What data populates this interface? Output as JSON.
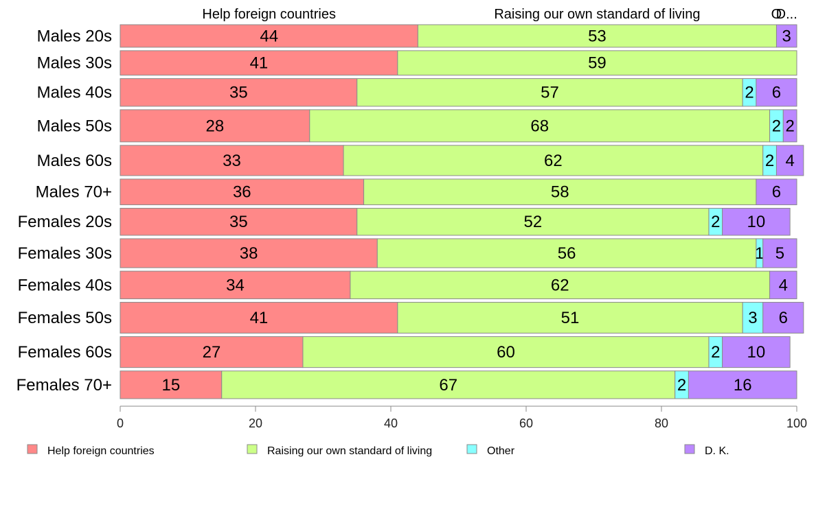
{
  "chart_data": {
    "type": "bar",
    "orientation": "horizontal",
    "stacked": true,
    "categories": [
      "Males 20s",
      "Males 30s",
      "Males 40s",
      "Males 50s",
      "Males 60s",
      "Males 70+",
      "Females 20s",
      "Females 30s",
      "Females 40s",
      "Females 50s",
      "Females 60s",
      "Females 70+"
    ],
    "series": [
      {
        "name": "Help foreign countries",
        "color": "#ff8888",
        "values": [
          44,
          41,
          35,
          28,
          33,
          36,
          35,
          38,
          34,
          41,
          27,
          15
        ]
      },
      {
        "name": "Raising our own standard of living",
        "color": "#ccff88",
        "values": [
          53,
          59,
          57,
          68,
          62,
          58,
          52,
          56,
          62,
          51,
          60,
          67
        ]
      },
      {
        "name": "Other",
        "color": "#88ffff",
        "values": [
          0,
          0,
          2,
          2,
          2,
          0,
          2,
          1,
          0,
          3,
          2,
          2
        ]
      },
      {
        "name": "D. K.",
        "color": "#bb88ff",
        "values": [
          3,
          0,
          6,
          2,
          4,
          6,
          10,
          5,
          4,
          6,
          10,
          16
        ]
      }
    ],
    "row_weights": [
      35,
      38,
      43,
      50,
      47,
      40,
      42,
      45,
      43,
      48,
      48,
      43
    ],
    "top_labels": [
      "Help foreign countries",
      "Raising our own standard of living",
      "O",
      "D..."
    ],
    "xlim": [
      0,
      100
    ],
    "xticks": [
      0,
      20,
      40,
      60,
      80,
      100
    ],
    "xlabel": "",
    "ylabel": "",
    "title": "",
    "legend_position": "bottom",
    "grid": false
  }
}
